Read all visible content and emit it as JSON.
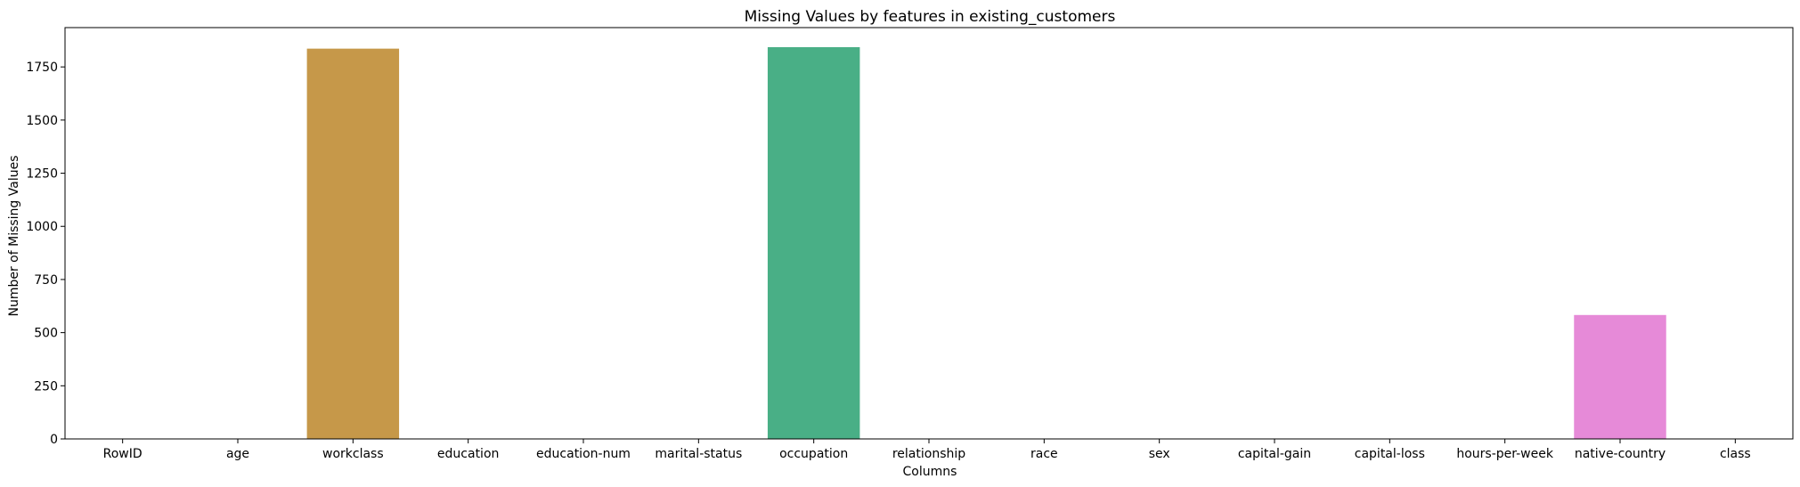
{
  "chart_data": {
    "type": "bar",
    "title": "Missing Values by features in existing_customers",
    "xlabel": "Columns",
    "ylabel": "Number of Missing Values",
    "categories": [
      "RowID",
      "age",
      "workclass",
      "education",
      "education-num",
      "marital-status",
      "occupation",
      "relationship",
      "race",
      "sex",
      "capital-gain",
      "capital-loss",
      "hours-per-week",
      "native-country",
      "class"
    ],
    "values": [
      0,
      0,
      1836,
      0,
      0,
      0,
      1843,
      0,
      0,
      0,
      0,
      0,
      0,
      583,
      0
    ],
    "colors": [
      "#f77189",
      "#e18832",
      "#c69849",
      "#a4a431",
      "#6ab131",
      "#33b07a",
      "#49af86",
      "#36ada4",
      "#38a9c5",
      "#3ba3ec",
      "#8e8cf4",
      "#cc7af4",
      "#f565cc",
      "#e68ad8",
      "#f66ba4"
    ],
    "yticks": [
      0,
      250,
      500,
      750,
      1000,
      1250,
      1500,
      1750
    ],
    "ylim": [
      0,
      1935
    ],
    "grid": false,
    "legend": "none"
  }
}
